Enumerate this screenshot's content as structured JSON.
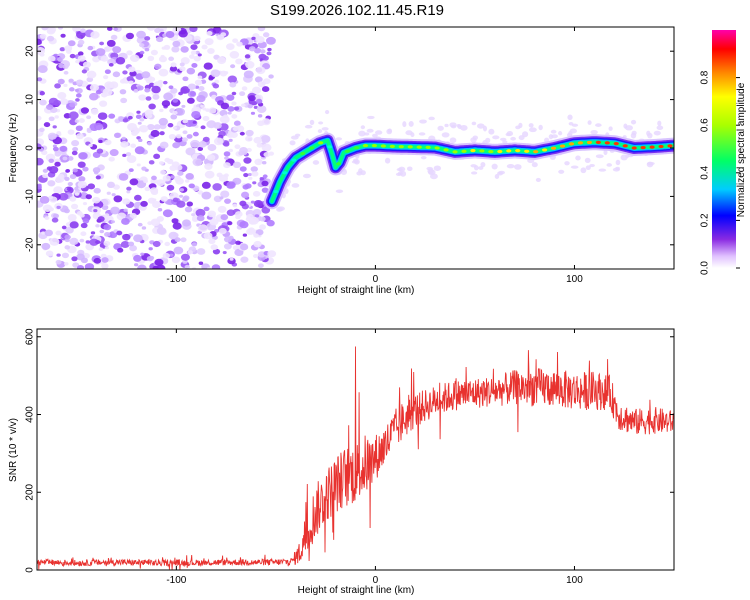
{
  "figure_title": "S199.2026.102.11.45.R19",
  "chart_data": [
    {
      "type": "heatmap",
      "title": "",
      "xlabel": "Height of straight line (km)",
      "ylabel": "Frequency (Hz)",
      "xlim": [
        -170,
        150
      ],
      "ylim": [
        -25,
        25
      ],
      "xticks": [
        -100,
        0,
        100
      ],
      "yticks": [
        -20,
        -10,
        0,
        10,
        20
      ],
      "xtick_labels": [
        "-100",
        "0",
        "100"
      ],
      "ytick_labels": [
        "-20",
        "-10",
        "0",
        "10",
        "20"
      ],
      "noise_region_x": [
        -170,
        -52
      ],
      "ridge": {
        "name": "dominant frequency track",
        "x": [
          -52,
          -48,
          -44,
          -40,
          -36,
          -32,
          -28,
          -24,
          -22,
          -20,
          -18,
          -16,
          -13,
          -10,
          -5,
          0,
          10,
          20,
          30,
          40,
          50,
          60,
          70,
          80,
          90,
          100,
          110,
          120,
          130,
          140,
          150
        ],
        "y": [
          -11,
          -7,
          -4,
          -2,
          -1,
          0,
          1,
          1.5,
          -1,
          -4,
          -3,
          -1,
          -0.5,
          0,
          0.5,
          0.5,
          0.3,
          0.2,
          0.1,
          -0.8,
          -0.5,
          -0.8,
          -0.5,
          -0.8,
          0,
          1,
          1.2,
          1,
          0,
          0.2,
          0.5
        ],
        "amplitude": [
          0.3,
          0.35,
          0.4,
          0.42,
          0.45,
          0.5,
          0.5,
          0.45,
          0.42,
          0.4,
          0.42,
          0.45,
          0.5,
          0.55,
          0.55,
          0.55,
          0.55,
          0.55,
          0.6,
          0.62,
          0.62,
          0.6,
          0.62,
          0.7,
          0.75,
          0.8,
          0.85,
          0.85,
          0.88,
          0.9,
          0.9
        ]
      },
      "colorbar": {
        "label": "Normalized spectral amplitude",
        "range": [
          0,
          1
        ],
        "ticks": [
          0,
          0.2,
          0.4,
          0.6,
          0.8
        ],
        "tick_labels": [
          "0.0",
          "0.2",
          "0.4",
          "0.6",
          "0.8"
        ]
      }
    },
    {
      "type": "line",
      "title": "",
      "xlabel": "Height of straight line (km)",
      "ylabel": "SNR (10 * v/v)",
      "xlim": [
        -170,
        150
      ],
      "ylim": [
        0,
        620
      ],
      "xticks": [
        -100,
        0,
        100
      ],
      "yticks": [
        0,
        200,
        400,
        600
      ],
      "xtick_labels": [
        "-100",
        "0",
        "100"
      ],
      "ytick_labels": [
        "0",
        "200",
        "400",
        "600"
      ],
      "color": "#e8322f",
      "series": [
        {
          "name": "SNR",
          "x": [
            -170,
            -150,
            -130,
            -110,
            -90,
            -70,
            -50,
            -42,
            -38,
            -35,
            -30,
            -25,
            -20,
            -15,
            -10,
            -5,
            0,
            5,
            10,
            15,
            20,
            30,
            40,
            50,
            60,
            70,
            80,
            90,
            100,
            110,
            118,
            122,
            130,
            140,
            150
          ],
          "y": [
            20,
            18,
            20,
            18,
            19,
            20,
            20,
            22,
            45,
            90,
            150,
            190,
            220,
            240,
            250,
            270,
            290,
            320,
            360,
            390,
            410,
            435,
            450,
            455,
            460,
            470,
            470,
            468,
            460,
            462,
            455,
            400,
            380,
            385,
            380
          ],
          "spread": [
            8,
            8,
            8,
            8,
            8,
            8,
            8,
            10,
            30,
            60,
            70,
            70,
            75,
            80,
            80,
            80,
            60,
            55,
            55,
            50,
            45,
            40,
            40,
            40,
            40,
            45,
            50,
            50,
            50,
            50,
            45,
            40,
            35,
            35,
            30
          ]
        }
      ],
      "annotations": [
        {
          "x": -10,
          "y": 575,
          "text": ""
        }
      ]
    }
  ]
}
